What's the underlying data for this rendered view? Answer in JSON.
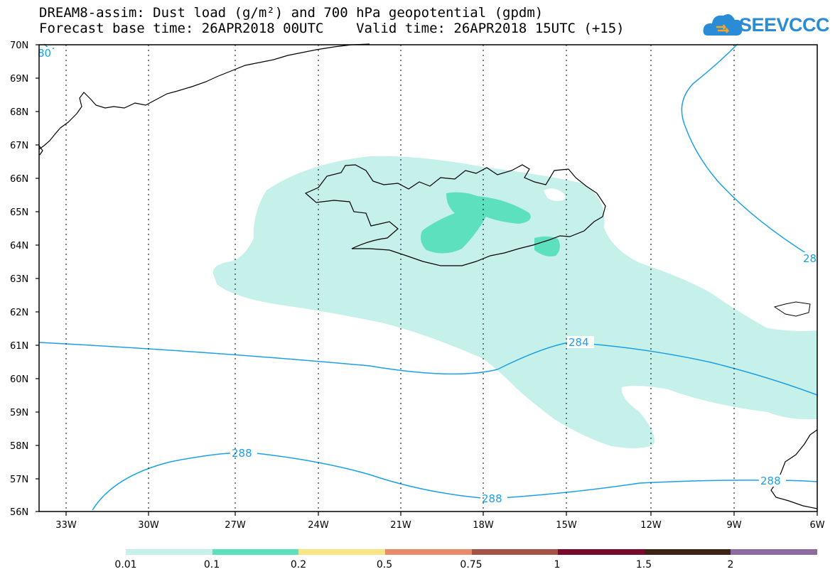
{
  "title": {
    "line1": "DREAM8-assim: Dust load (g/m²) and 700 hPa geopotential (gpdm)",
    "line2": "Forecast base time: 26APR2018 00UTC    Valid time: 26APR2018 15UTC (+15)"
  },
  "logo": {
    "text": "SEEVCCC",
    "icon": "cloud-icon",
    "color": "#2a8bd6"
  },
  "axes": {
    "lat_labels": [
      "70N",
      "69N",
      "68N",
      "67N",
      "66N",
      "65N",
      "64N",
      "63N",
      "62N",
      "61N",
      "60N",
      "59N",
      "58N",
      "57N",
      "56N"
    ],
    "lon_labels": [
      "33W",
      "30W",
      "27W",
      "24W",
      "21W",
      "18W",
      "15W",
      "12W",
      "9W",
      "6W"
    ],
    "lat_range": [
      56,
      70
    ],
    "lon_range": [
      -34.5,
      -6
    ]
  },
  "contour_labels": [
    "80",
    "284",
    "288",
    "288",
    "288",
    "28"
  ],
  "colorbar": {
    "colors": [
      "#c6f0ea",
      "#5ce0bd",
      "#f6e784",
      "#e98a6a",
      "#a55347",
      "#7a0a2a",
      "#3b2315",
      "#8d6b9e"
    ],
    "labels": [
      "0.01",
      "0.1",
      "0.2",
      "0.5",
      "0.75",
      "1",
      "1.5",
      "2"
    ]
  },
  "contour_color": "#1aa0e6"
}
